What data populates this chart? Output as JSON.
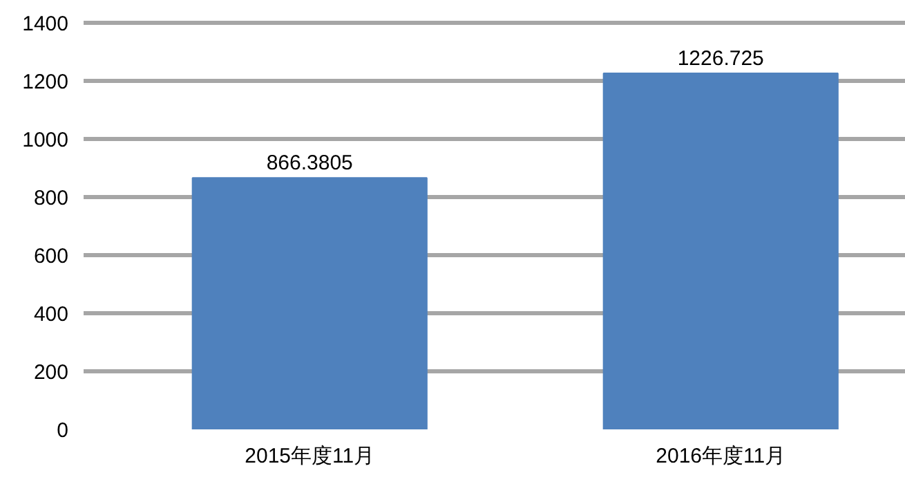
{
  "chart_data": {
    "type": "bar",
    "categories": [
      "2015年度11月",
      "2016年度11月"
    ],
    "values": [
      866.3805,
      1226.725
    ],
    "color": "#4f81bd",
    "value_labels": [
      "866.3805",
      "1226.725"
    ],
    "ylim": [
      0,
      1410
    ],
    "yticks": [
      0,
      200,
      400,
      600,
      800,
      1000,
      1200,
      1400
    ],
    "grid": "y"
  }
}
